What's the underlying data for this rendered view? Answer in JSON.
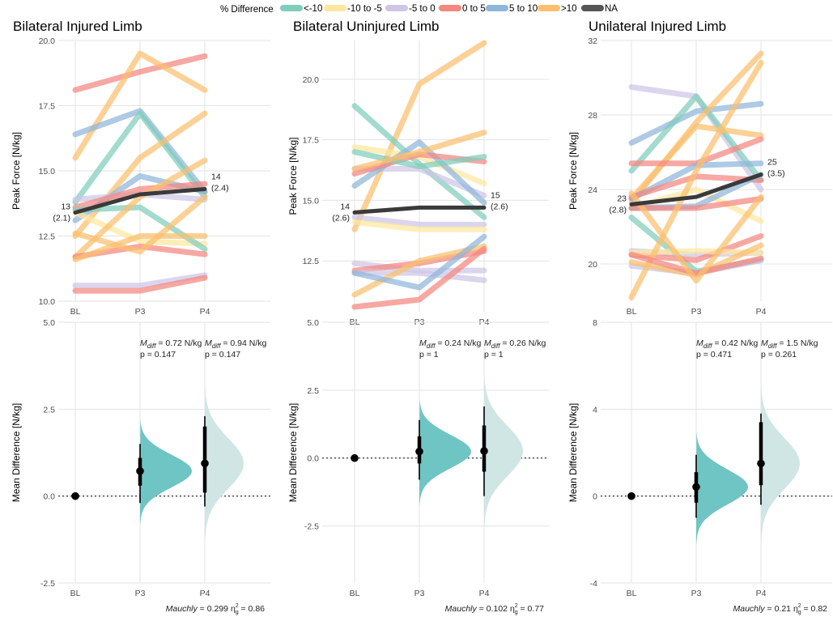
{
  "chart_data": {
    "type": "line",
    "legend": {
      "title": "% Difference",
      "position": "top",
      "items": [
        {
          "label": "<-10",
          "color": "#7fcdbb"
        },
        {
          "label": "-10 to -5",
          "color": "#fde7a0"
        },
        {
          "label": "-5 to 0",
          "color": "#cdc6e6"
        },
        {
          "label": "0 to 5",
          "color": "#f4877f"
        },
        {
          "label": "5 to 10",
          "color": "#8fb5d9"
        },
        {
          "label": ">10",
          "color": "#fbbf6e"
        },
        {
          "label": "NA",
          "color": "#555555"
        }
      ]
    },
    "panels": [
      {
        "title": "Bilateral Injured Limb",
        "ylabel": "Peak Force [N/kg]",
        "ylim": [
          10,
          20
        ],
        "yticks": [
          "10.0",
          "12.5",
          "15.0",
          "17.5",
          "20.0"
        ],
        "ytick_values": [
          10,
          12.5,
          15,
          17.5,
          20
        ],
        "categories": [
          "BL",
          "P3",
          "P4"
        ],
        "series": [
          {
            "cat": "0 to 5",
            "values": [
              18.1,
              18.8,
              19.4
            ]
          },
          {
            "cat": ">10",
            "values": [
              15.5,
              19.5,
              18.1
            ]
          },
          {
            "cat": "5 to 10",
            "values": [
              16.4,
              17.3,
              14.2
            ]
          },
          {
            "cat": "<-10",
            "values": [
              13.8,
              17.2,
              14.0
            ]
          },
          {
            "cat": ">10",
            "values": [
              12.5,
              15.5,
              17.2
            ]
          },
          {
            "cat": "5 to 10",
            "values": [
              13.1,
              14.8,
              14.2
            ]
          },
          {
            "cat": "-5 to 0",
            "values": [
              13.9,
              14.1,
              13.9
            ]
          },
          {
            "cat": "0 to 5",
            "values": [
              13.6,
              14.3,
              14.5
            ]
          },
          {
            "cat": "-10 to -5",
            "values": [
              13.4,
              12.3,
              12.2
            ]
          },
          {
            "cat": "<-10",
            "values": [
              13.5,
              13.6,
              12.0
            ]
          },
          {
            "cat": ">10",
            "values": [
              11.7,
              14.0,
              15.4
            ]
          },
          {
            "cat": "0 to 5",
            "values": [
              11.7,
              12.1,
              11.8
            ]
          },
          {
            "cat": ">10",
            "values": [
              12.6,
              11.9,
              14.0
            ]
          },
          {
            "cat": ">10",
            "values": [
              11.6,
              12.5,
              12.5
            ]
          },
          {
            "cat": "-5 to 0",
            "values": [
              10.6,
              10.6,
              11.0
            ]
          },
          {
            "cat": "0 to 5",
            "values": [
              10.4,
              10.4,
              10.9
            ]
          },
          {
            "cat": "NA",
            "values": [
              13.4,
              14.1,
              14.3
            ]
          }
        ],
        "mean_labels": [
          {
            "at": "BL",
            "line1": "13",
            "line2": "(2.1)"
          },
          {
            "at": "P4",
            "line1": "14",
            "line2": "(2.4)"
          }
        ],
        "diff": {
          "ylabel": "Mean Difference [N/kg]",
          "ylim": [
            -2.5,
            5
          ],
          "yticks": [
            "-2.5",
            "0.0",
            "2.5",
            "5.0"
          ],
          "ytick_values": [
            -2.5,
            0,
            2.5,
            5
          ],
          "points": [
            {
              "cat": "BL",
              "mean": 0
            },
            {
              "cat": "P3",
              "mean": 0.72,
              "ci_low": -0.2,
              "ci_high": 1.5,
              "iqr_low": 0.3,
              "iqr_high": 1.1
            },
            {
              "cat": "P4",
              "mean": 0.94,
              "ci_low": -0.3,
              "ci_high": 2.3,
              "iqr_low": 0.1,
              "iqr_high": 2.0
            }
          ],
          "annotations": [
            {
              "at": "P3",
              "label": "M",
              "sub": "diff",
              "value": " = 0.72 N/kg",
              "p": "p = 0.147"
            },
            {
              "at": "P4",
              "label": "M",
              "sub": "diff",
              "value": " = 0.94 N/kg",
              "p": "p = 0.147"
            }
          ],
          "footer": {
            "label": "Mauchly",
            "value": " = 0.299 ",
            "eta": "η",
            "eta_sub": "g",
            "eta_sup": "2",
            "eta_value": " = 0.86"
          }
        }
      },
      {
        "title": "Bilateral Uninjured Limb",
        "ylabel": "Peak Force [N/kg]",
        "ylim": [
          10.4,
          21.6
        ],
        "yticks": [
          "12.5",
          "15.0",
          "17.5",
          "20.0"
        ],
        "ytick_values": [
          12.5,
          15,
          17.5,
          20
        ],
        "categories": [
          "BL",
          "P3",
          "P4"
        ],
        "series": [
          {
            "cat": ">10",
            "values": [
              13.8,
              19.8,
              21.5
            ]
          },
          {
            "cat": "<-10",
            "values": [
              18.9,
              16.5,
              14.3
            ]
          },
          {
            "cat": "-10 to -5",
            "values": [
              17.2,
              16.8,
              15.7
            ]
          },
          {
            "cat": "-5 to 0",
            "values": [
              16.3,
              16.3,
              15.2
            ]
          },
          {
            "cat": "5 to 10",
            "values": [
              15.6,
              17.4,
              14.9
            ]
          },
          {
            "cat": "0 to 5",
            "values": [
              16.1,
              16.9,
              16.6
            ]
          },
          {
            "cat": "<-10",
            "values": [
              17.0,
              16.4,
              16.8
            ]
          },
          {
            "cat": ">10",
            "values": [
              16.3,
              17.0,
              17.8
            ]
          },
          {
            "cat": "-5 to 0",
            "values": [
              14.3,
              14.0,
              14.0
            ]
          },
          {
            "cat": "-10 to -5",
            "values": [
              14.1,
              13.8,
              13.8
            ]
          },
          {
            "cat": "-5 to 0",
            "values": [
              12.4,
              12.1,
              12.1
            ]
          },
          {
            "cat": "0 to 5",
            "values": [
              12.1,
              12.4,
              12.9
            ]
          },
          {
            "cat": "-5 to 0",
            "values": [
              12.0,
              12.0,
              11.7
            ]
          },
          {
            "cat": ">10",
            "values": [
              11.1,
              12.5,
              13.1
            ]
          },
          {
            "cat": "5 to 10",
            "values": [
              12.0,
              11.4,
              13.5
            ]
          },
          {
            "cat": "0 to 5",
            "values": [
              10.6,
              10.9,
              13.0
            ]
          },
          {
            "cat": "NA",
            "values": [
              14.5,
              14.7,
              14.7
            ]
          }
        ],
        "mean_labels": [
          {
            "at": "BL",
            "line1": "14",
            "line2": "(2.6)"
          },
          {
            "at": "P4",
            "line1": "15",
            "line2": "(2.6)"
          }
        ],
        "diff": {
          "ylabel": "Mean Difference [N/kg]",
          "ylim": [
            -4.6,
            5
          ],
          "yticks": [
            "-2.5",
            "0.0",
            "2.5",
            "5.0"
          ],
          "ytick_values": [
            -2.5,
            0,
            2.5,
            5
          ],
          "points": [
            {
              "cat": "BL",
              "mean": 0
            },
            {
              "cat": "P3",
              "mean": 0.24,
              "ci_low": -0.8,
              "ci_high": 1.4,
              "iqr_low": -0.2,
              "iqr_high": 0.8
            },
            {
              "cat": "P4",
              "mean": 0.26,
              "ci_low": -1.4,
              "ci_high": 1.9,
              "iqr_low": -0.5,
              "iqr_high": 1.2
            }
          ],
          "annotations": [
            {
              "at": "P3",
              "label": "M",
              "sub": "diff",
              "value": " = 0.24 N/kg",
              "p": "p = 1"
            },
            {
              "at": "P4",
              "label": "M",
              "sub": "diff",
              "value": " = 0.26 N/kg",
              "p": "p = 1"
            }
          ],
          "footer": {
            "label": "Mauchly",
            "value": " = 0.102 ",
            "eta": "η",
            "eta_sub": "g",
            "eta_sup": "2",
            "eta_value": " = 0.77"
          }
        }
      },
      {
        "title": "Unilateral Injured Limb",
        "ylabel": "Peak Force [N/kg]",
        "ylim": [
          18,
          32
        ],
        "yticks": [
          "20",
          "24",
          "28",
          "32"
        ],
        "ytick_values": [
          20,
          24,
          28,
          32
        ],
        "categories": [
          "BL",
          "P3",
          "P4"
        ],
        "series": [
          {
            "cat": "-5 to 0",
            "values": [
              29.5,
              29.0,
              24.0
            ]
          },
          {
            "cat": "5 to 10",
            "values": [
              26.5,
              28.2,
              28.6
            ]
          },
          {
            "cat": "<-10",
            "values": [
              25.0,
              29.0,
              24.5
            ]
          },
          {
            "cat": ">10",
            "values": [
              23.3,
              27.6,
              31.3
            ]
          },
          {
            "cat": ">10",
            "values": [
              23.5,
              27.4,
              26.9
            ]
          },
          {
            "cat": "0 to 5",
            "values": [
              25.4,
              25.4,
              26.7
            ]
          },
          {
            "cat": "5 to 10",
            "values": [
              23.5,
              25.3,
              25.4
            ]
          },
          {
            "cat": "0 to 5",
            "values": [
              23.6,
              24.7,
              24.5
            ]
          },
          {
            "cat": "-10 to -5",
            "values": [
              23.0,
              24.0,
              22.3
            ]
          },
          {
            "cat": "<-10",
            "values": [
              22.5,
              19.6,
              20.2
            ]
          },
          {
            "cat": "5 to 10",
            "values": [
              23.0,
              23.1,
              24.8
            ]
          },
          {
            "cat": "0 to 5",
            "values": [
              23.0,
              23.0,
              23.5
            ]
          },
          {
            "cat": "-5 to 0",
            "values": [
              20.7,
              20.5,
              20.6
            ]
          },
          {
            "cat": "0 to 5",
            "values": [
              20.5,
              20.2,
              21.5
            ]
          },
          {
            "cat": "-10 to -5",
            "values": [
              20.6,
              20.7,
              20.6
            ]
          },
          {
            "cat": "-5 to 0",
            "values": [
              19.9,
              19.5,
              20.2
            ]
          },
          {
            "cat": ">10",
            "values": [
              18.2,
              25.0,
              30.8
            ]
          },
          {
            "cat": ">10",
            "values": [
              20.1,
              19.4,
              21.0
            ]
          },
          {
            "cat": "0 to 5",
            "values": [
              20.5,
              19.5,
              20.3
            ]
          },
          {
            "cat": ">10",
            "values": [
              23.8,
              19.1,
              23.6
            ]
          },
          {
            "cat": "NA",
            "values": [
              23.2,
              23.6,
              24.8
            ]
          }
        ],
        "mean_labels": [
          {
            "at": "BL",
            "line1": "23",
            "line2": "(2.8)"
          },
          {
            "at": "P4",
            "line1": "25",
            "line2": "(3.5)"
          }
        ],
        "diff": {
          "ylabel": "Mean Difference [N/kg]",
          "ylim": [
            -4,
            8
          ],
          "yticks": [
            "-4",
            "0",
            "4",
            "8"
          ],
          "ytick_values": [
            -4,
            0,
            4,
            8
          ],
          "points": [
            {
              "cat": "BL",
              "mean": 0
            },
            {
              "cat": "P3",
              "mean": 0.42,
              "ci_low": -1.0,
              "ci_high": 1.9,
              "iqr_low": -0.3,
              "iqr_high": 1.1
            },
            {
              "cat": "P4",
              "mean": 1.5,
              "ci_low": -0.4,
              "ci_high": 3.8,
              "iqr_low": 0.5,
              "iqr_high": 3.4
            }
          ],
          "annotations": [
            {
              "at": "P3",
              "label": "M",
              "sub": "diff",
              "value": " = 0.42 N/kg",
              "p": "p = 0.471"
            },
            {
              "at": "P4",
              "label": "M",
              "sub": "diff",
              "value": " = 1.5 N/kg",
              "p": "p = 0.261"
            }
          ],
          "footer": {
            "label": "Mauchly",
            "value": " = 0.21 ",
            "eta": "η",
            "eta_sub": "g",
            "eta_sup": "2",
            "eta_value": " = 0.82"
          }
        }
      }
    ]
  },
  "colors": {
    "diff_fill_p3": "#6fc5c3",
    "diff_fill_p4": "#cfe6e4",
    "mean_line": "#3a3a3a",
    "grid": "#e3e3e3"
  }
}
